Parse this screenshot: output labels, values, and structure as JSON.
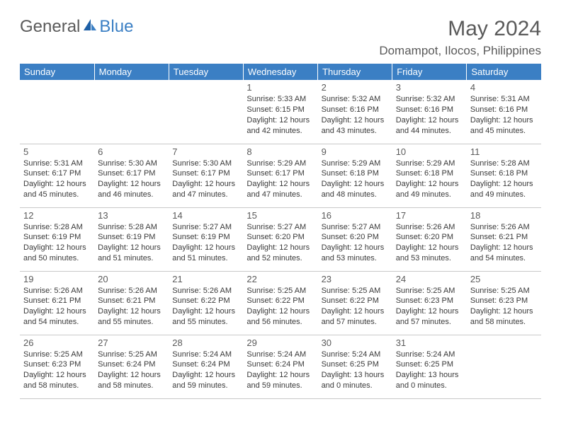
{
  "brand": {
    "general": "General",
    "blue": "Blue"
  },
  "title": {
    "month": "May 2024",
    "location": "Domampot, Ilocos, Philippines"
  },
  "colors": {
    "header_bg": "#3b7fc4",
    "header_text": "#ffffff",
    "text": "#3a3a3a",
    "muted": "#5a5a5a",
    "rule": "#c8c8c8"
  },
  "weekdays": [
    "Sunday",
    "Monday",
    "Tuesday",
    "Wednesday",
    "Thursday",
    "Friday",
    "Saturday"
  ],
  "layout": {
    "first_weekday_index": 3,
    "days_in_month": 31
  },
  "days": {
    "1": {
      "sunrise": "5:33 AM",
      "sunset": "6:15 PM",
      "daylight": "12 hours and 42 minutes."
    },
    "2": {
      "sunrise": "5:32 AM",
      "sunset": "6:16 PM",
      "daylight": "12 hours and 43 minutes."
    },
    "3": {
      "sunrise": "5:32 AM",
      "sunset": "6:16 PM",
      "daylight": "12 hours and 44 minutes."
    },
    "4": {
      "sunrise": "5:31 AM",
      "sunset": "6:16 PM",
      "daylight": "12 hours and 45 minutes."
    },
    "5": {
      "sunrise": "5:31 AM",
      "sunset": "6:17 PM",
      "daylight": "12 hours and 45 minutes."
    },
    "6": {
      "sunrise": "5:30 AM",
      "sunset": "6:17 PM",
      "daylight": "12 hours and 46 minutes."
    },
    "7": {
      "sunrise": "5:30 AM",
      "sunset": "6:17 PM",
      "daylight": "12 hours and 47 minutes."
    },
    "8": {
      "sunrise": "5:29 AM",
      "sunset": "6:17 PM",
      "daylight": "12 hours and 47 minutes."
    },
    "9": {
      "sunrise": "5:29 AM",
      "sunset": "6:18 PM",
      "daylight": "12 hours and 48 minutes."
    },
    "10": {
      "sunrise": "5:29 AM",
      "sunset": "6:18 PM",
      "daylight": "12 hours and 49 minutes."
    },
    "11": {
      "sunrise": "5:28 AM",
      "sunset": "6:18 PM",
      "daylight": "12 hours and 49 minutes."
    },
    "12": {
      "sunrise": "5:28 AM",
      "sunset": "6:19 PM",
      "daylight": "12 hours and 50 minutes."
    },
    "13": {
      "sunrise": "5:28 AM",
      "sunset": "6:19 PM",
      "daylight": "12 hours and 51 minutes."
    },
    "14": {
      "sunrise": "5:27 AM",
      "sunset": "6:19 PM",
      "daylight": "12 hours and 51 minutes."
    },
    "15": {
      "sunrise": "5:27 AM",
      "sunset": "6:20 PM",
      "daylight": "12 hours and 52 minutes."
    },
    "16": {
      "sunrise": "5:27 AM",
      "sunset": "6:20 PM",
      "daylight": "12 hours and 53 minutes."
    },
    "17": {
      "sunrise": "5:26 AM",
      "sunset": "6:20 PM",
      "daylight": "12 hours and 53 minutes."
    },
    "18": {
      "sunrise": "5:26 AM",
      "sunset": "6:21 PM",
      "daylight": "12 hours and 54 minutes."
    },
    "19": {
      "sunrise": "5:26 AM",
      "sunset": "6:21 PM",
      "daylight": "12 hours and 54 minutes."
    },
    "20": {
      "sunrise": "5:26 AM",
      "sunset": "6:21 PM",
      "daylight": "12 hours and 55 minutes."
    },
    "21": {
      "sunrise": "5:26 AM",
      "sunset": "6:22 PM",
      "daylight": "12 hours and 55 minutes."
    },
    "22": {
      "sunrise": "5:25 AM",
      "sunset": "6:22 PM",
      "daylight": "12 hours and 56 minutes."
    },
    "23": {
      "sunrise": "5:25 AM",
      "sunset": "6:22 PM",
      "daylight": "12 hours and 57 minutes."
    },
    "24": {
      "sunrise": "5:25 AM",
      "sunset": "6:23 PM",
      "daylight": "12 hours and 57 minutes."
    },
    "25": {
      "sunrise": "5:25 AM",
      "sunset": "6:23 PM",
      "daylight": "12 hours and 58 minutes."
    },
    "26": {
      "sunrise": "5:25 AM",
      "sunset": "6:23 PM",
      "daylight": "12 hours and 58 minutes."
    },
    "27": {
      "sunrise": "5:25 AM",
      "sunset": "6:24 PM",
      "daylight": "12 hours and 58 minutes."
    },
    "28": {
      "sunrise": "5:24 AM",
      "sunset": "6:24 PM",
      "daylight": "12 hours and 59 minutes."
    },
    "29": {
      "sunrise": "5:24 AM",
      "sunset": "6:24 PM",
      "daylight": "12 hours and 59 minutes."
    },
    "30": {
      "sunrise": "5:24 AM",
      "sunset": "6:25 PM",
      "daylight": "13 hours and 0 minutes."
    },
    "31": {
      "sunrise": "5:24 AM",
      "sunset": "6:25 PM",
      "daylight": "13 hours and 0 minutes."
    }
  },
  "labels": {
    "sunrise": "Sunrise:",
    "sunset": "Sunset:",
    "daylight": "Daylight:"
  }
}
